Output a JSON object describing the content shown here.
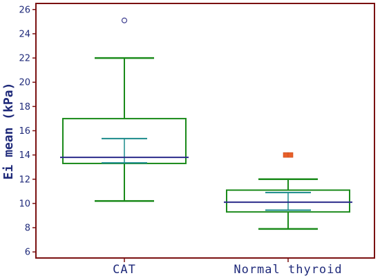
{
  "chart_data": {
    "type": "box",
    "ylabel": "Ei mean (kPa)",
    "ylim": [
      5.5,
      26.5
    ],
    "y_ticks": [
      6,
      8,
      10,
      12,
      14,
      16,
      18,
      20,
      22,
      24,
      26
    ],
    "grid": false,
    "categories": [
      "CAT",
      "Normal thyroid"
    ],
    "boxes": [
      {
        "category": "CAT",
        "whisker_low": 10.2,
        "q1": 13.3,
        "median": 13.8,
        "q3": 17.0,
        "whisker_high": 22.0,
        "mean_ci": [
          13.35,
          15.35
        ],
        "outliers": [
          {
            "value": 25.1,
            "marker": "circle"
          }
        ]
      },
      {
        "category": "Normal thyroid",
        "whisker_low": 7.9,
        "q1": 9.3,
        "median": 10.1,
        "q3": 11.1,
        "whisker_high": 12.0,
        "mean_ci": [
          9.45,
          10.9
        ],
        "outliers": [
          {
            "value": 14.0,
            "marker": "square"
          }
        ]
      }
    ],
    "colors": {
      "frame": "#7a1010",
      "box": "#1a8a1a",
      "median": "#2a2a8a",
      "ci": "#1a8a8a",
      "outlier_circle": "#3d3d8f",
      "outlier_square": "#e8602a",
      "text": "#1f2a7a"
    }
  }
}
